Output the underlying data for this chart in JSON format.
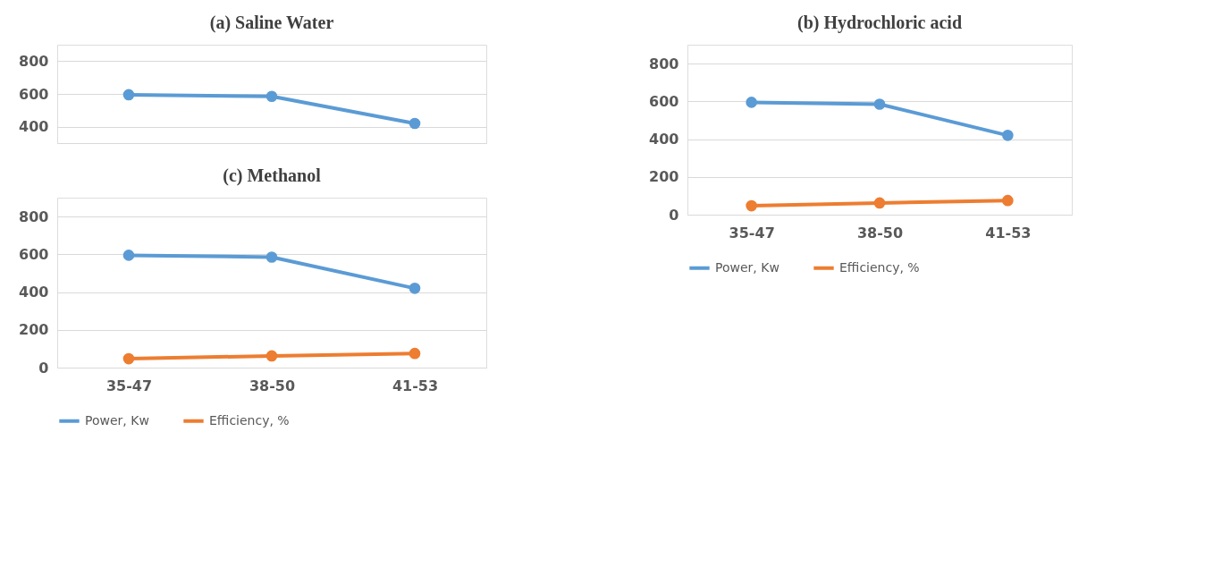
{
  "chart_data": [
    {
      "type": "line",
      "title": "(a) Saline Water",
      "categories": [
        null,
        null,
        null
      ],
      "series": [
        {
          "color": "#5b9bd5",
          "values": [
            595,
            585,
            420
          ]
        }
      ],
      "ylim": [
        300,
        900
      ],
      "yticks": [
        400,
        600,
        800
      ],
      "grid": "y",
      "legend": false,
      "marker": "circle",
      "tick_labels": "y"
    },
    {
      "type": "line",
      "title": "(b) Hydrochloric acid",
      "categories": [
        "35-47",
        "38-50",
        "41-53"
      ],
      "series": [
        {
          "name": "Power, Kw",
          "color": "#5b9bd5",
          "values": [
            595,
            585,
            420
          ]
        },
        {
          "name": "Efficiency, %",
          "color": "#ed7d31",
          "values": [
            47,
            62,
            75
          ]
        }
      ],
      "ylim": [
        0,
        900
      ],
      "yticks": [
        0,
        200,
        400,
        600,
        800
      ],
      "grid": "y",
      "legend": "bottom",
      "marker": "circle"
    },
    {
      "type": "line",
      "title": "(c) Methanol",
      "categories": [
        "35-47",
        "38-50",
        "41-53"
      ],
      "series": [
        {
          "name": "Power, Kw",
          "color": "#5b9bd5",
          "values": [
            595,
            585,
            420
          ]
        },
        {
          "name": "Efficiency, %",
          "color": "#ed7d31",
          "values": [
            47,
            62,
            75
          ]
        }
      ],
      "ylim": [
        0,
        900
      ],
      "yticks": [
        0,
        200,
        400,
        600,
        800
      ],
      "grid": "y",
      "legend": "bottom",
      "marker": "circle"
    }
  ]
}
